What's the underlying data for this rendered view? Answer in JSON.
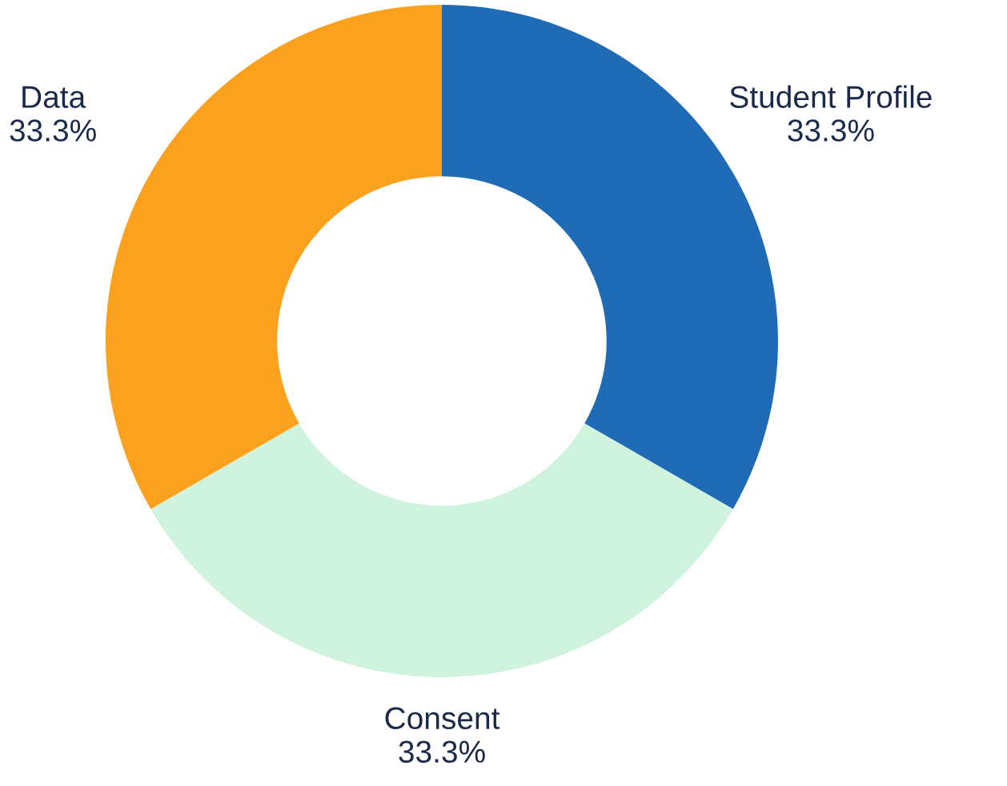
{
  "chart_data": {
    "type": "donut",
    "categories": [
      "Student Profile",
      "Consent",
      "Data"
    ],
    "values": [
      33.3,
      33.3,
      33.3
    ],
    "colors": [
      "#1f6bb6",
      "#cff3dd",
      "#fca11d"
    ],
    "value_labels": [
      "33.3%",
      "33.3%",
      "33.3%"
    ],
    "legend": false
  }
}
